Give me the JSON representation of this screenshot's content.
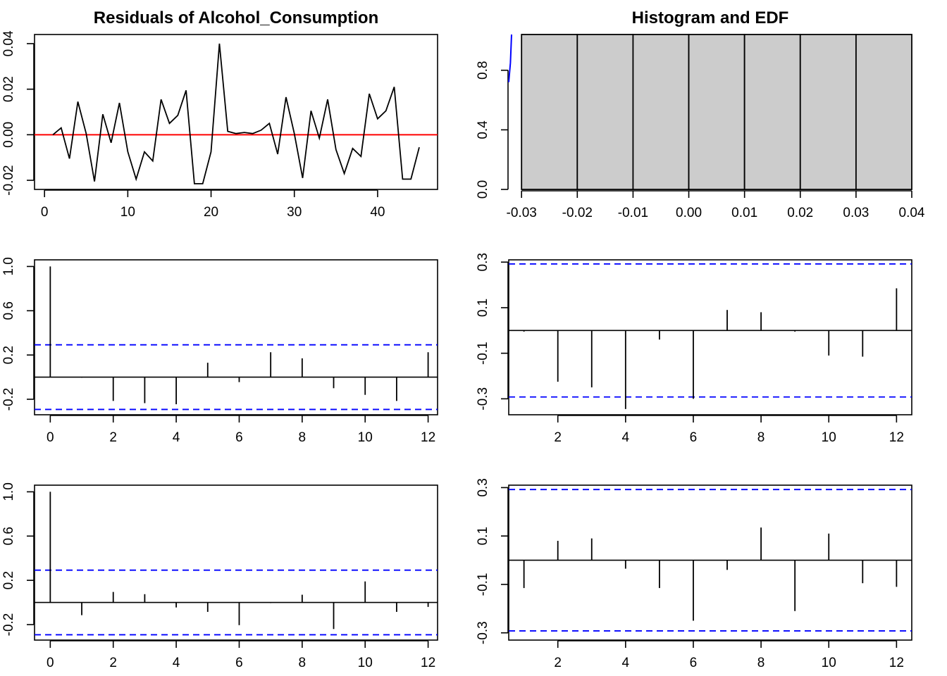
{
  "chart_data": [
    {
      "id": "resid",
      "type": "line",
      "title": "Residuals of Alcohol_Consumption",
      "xlabel": "",
      "ylabel": "",
      "xlim": [
        -1.2,
        47.2
      ],
      "ylim": [
        -0.024,
        0.044
      ],
      "xticks": [
        0,
        10,
        20,
        30,
        40
      ],
      "xtick_labels": [
        "0",
        "10",
        "20",
        "30",
        "40"
      ],
      "yticks": [
        -0.02,
        0.0,
        0.02,
        0.04
      ],
      "ytick_labels": [
        "-0.02",
        "0.00",
        "0.02",
        "0.04"
      ],
      "hline": {
        "value": 0,
        "color": "#ff0000"
      },
      "series": [
        {
          "color": "#000000",
          "x": [
            1,
            2,
            3,
            4,
            5,
            6,
            7,
            8,
            9,
            10,
            11,
            12,
            13,
            14,
            15,
            16,
            17,
            18,
            19,
            20,
            21,
            22,
            23,
            24,
            25,
            26,
            27,
            28,
            29,
            30,
            31,
            32,
            33,
            34,
            35,
            36,
            37,
            38,
            39,
            40,
            41,
            42,
            43,
            44,
            45
          ],
          "y": [
            0.0,
            0.003,
            -0.0105,
            0.0145,
            0.0005,
            -0.0205,
            0.009,
            -0.0035,
            0.014,
            -0.0075,
            -0.0195,
            -0.0075,
            -0.0115,
            0.0155,
            0.005,
            0.0085,
            0.0195,
            -0.0215,
            -0.0215,
            -0.0075,
            0.04,
            0.0015,
            0.0005,
            0.001,
            0.0005,
            0.002,
            0.005,
            -0.0085,
            0.0165,
            0.0005,
            -0.019,
            0.0105,
            -0.0015,
            0.0155,
            -0.0065,
            -0.017,
            -0.006,
            -0.0095,
            0.018,
            0.007,
            0.0105,
            0.021,
            -0.0195,
            -0.0195,
            -0.0055
          ]
        }
      ],
      "grid": false
    },
    {
      "id": "hist",
      "type": "bar",
      "title": "Histogram and EDF",
      "xlabel": "",
      "ylabel": "",
      "xlim": [
        -0.0323,
        0.04
      ],
      "ylim": [
        0.0,
        1.04
      ],
      "xticks": [
        -0.03,
        -0.02,
        -0.01,
        0.0,
        0.01,
        0.02,
        0.03,
        0.04
      ],
      "xtick_labels": [
        "-0.03",
        "-0.02",
        "-0.01",
        "0.00",
        "0.01",
        "0.02",
        "0.03",
        "0.04"
      ],
      "yticks": [
        0.0,
        0.4,
        0.8
      ],
      "ytick_labels": [
        "0.0",
        "0.4",
        "0.8"
      ],
      "bin_edges": [
        -0.03,
        -0.02,
        -0.01,
        0.0,
        0.01,
        0.02,
        0.03,
        0.04
      ],
      "bar_color": "#cccccc",
      "edf_color": "#0000ff",
      "edf_visible": {
        "x": [
          -0.0323,
          -0.032,
          -0.0318
        ],
        "y": [
          0.72,
          0.85,
          1.04
        ]
      },
      "grid": false
    },
    {
      "id": "acf1",
      "type": "bar",
      "title": "",
      "xlabel": "",
      "ylabel": "",
      "xlim": [
        -0.5,
        12.3
      ],
      "ylim": [
        -0.34,
        1.06
      ],
      "xticks": [
        0,
        2,
        4,
        6,
        8,
        10,
        12
      ],
      "xtick_labels": [
        "0",
        "2",
        "4",
        "6",
        "8",
        "10",
        "12"
      ],
      "yticks": [
        -0.2,
        0.2,
        0.6,
        1.0
      ],
      "ytick_labels": [
        "-0.2",
        "0.2",
        "0.6",
        "1.0"
      ],
      "ci": 0.292,
      "lags": [
        0,
        1,
        2,
        3,
        4,
        5,
        6,
        7,
        8,
        9,
        10,
        11,
        12
      ],
      "values": [
        1.0,
        -0.005,
        -0.215,
        -0.235,
        -0.245,
        0.13,
        -0.045,
        0.225,
        0.17,
        -0.1,
        -0.16,
        -0.215,
        0.225
      ]
    },
    {
      "id": "pacf1",
      "type": "bar",
      "title": "",
      "xlabel": "",
      "ylabel": "",
      "xlim": [
        0.55,
        12.45
      ],
      "ylim": [
        -0.37,
        0.31
      ],
      "xticks": [
        2,
        4,
        6,
        8,
        10,
        12
      ],
      "xtick_labels": [
        "2",
        "4",
        "6",
        "8",
        "10",
        "12"
      ],
      "yticks": [
        -0.3,
        -0.1,
        0.1,
        0.3
      ],
      "ytick_labels": [
        "-0.3",
        "-0.1",
        "0.1",
        "0.3"
      ],
      "ci": 0.292,
      "lags": [
        1,
        2,
        3,
        4,
        5,
        6,
        7,
        8,
        9,
        10,
        11,
        12
      ],
      "values": [
        -0.005,
        -0.225,
        -0.25,
        -0.345,
        -0.04,
        -0.3,
        0.09,
        0.08,
        -0.005,
        -0.11,
        -0.115,
        0.185
      ]
    },
    {
      "id": "acf2",
      "type": "bar",
      "title": "",
      "xlabel": "",
      "ylabel": "",
      "xlim": [
        -0.5,
        12.3
      ],
      "ylim": [
        -0.34,
        1.06
      ],
      "xticks": [
        0,
        2,
        4,
        6,
        8,
        10,
        12
      ],
      "xtick_labels": [
        "0",
        "2",
        "4",
        "6",
        "8",
        "10",
        "12"
      ],
      "yticks": [
        -0.2,
        0.2,
        0.6,
        1.0
      ],
      "ytick_labels": [
        "-0.2",
        "0.2",
        "0.6",
        "1.0"
      ],
      "ci": 0.292,
      "lags": [
        0,
        1,
        2,
        3,
        4,
        5,
        6,
        7,
        8,
        9,
        10,
        11,
        12
      ],
      "values": [
        1.0,
        -0.115,
        0.095,
        0.075,
        -0.045,
        -0.085,
        -0.205,
        -0.005,
        0.07,
        -0.24,
        0.19,
        -0.085,
        -0.04
      ]
    },
    {
      "id": "pacf2",
      "type": "bar",
      "title": "",
      "xlabel": "",
      "ylabel": "",
      "xlim": [
        0.55,
        12.45
      ],
      "ylim": [
        -0.33,
        0.31
      ],
      "xticks": [
        2,
        4,
        6,
        8,
        10,
        12
      ],
      "xtick_labels": [
        "2",
        "4",
        "6",
        "8",
        "10",
        "12"
      ],
      "yticks": [
        -0.3,
        -0.1,
        0.1,
        0.3
      ],
      "ytick_labels": [
        "-0.3",
        "-0.1",
        "0.1",
        "0.3"
      ],
      "ci": 0.292,
      "lags": [
        1,
        2,
        3,
        4,
        5,
        6,
        7,
        8,
        9,
        10,
        11,
        12
      ],
      "values": [
        -0.115,
        0.08,
        0.09,
        -0.035,
        -0.115,
        -0.25,
        -0.04,
        0.135,
        -0.21,
        0.11,
        -0.095,
        -0.11
      ]
    }
  ],
  "colors": {
    "axis": "#000000",
    "ci_line": "#0000ff",
    "zero_line": "#ff0000"
  }
}
